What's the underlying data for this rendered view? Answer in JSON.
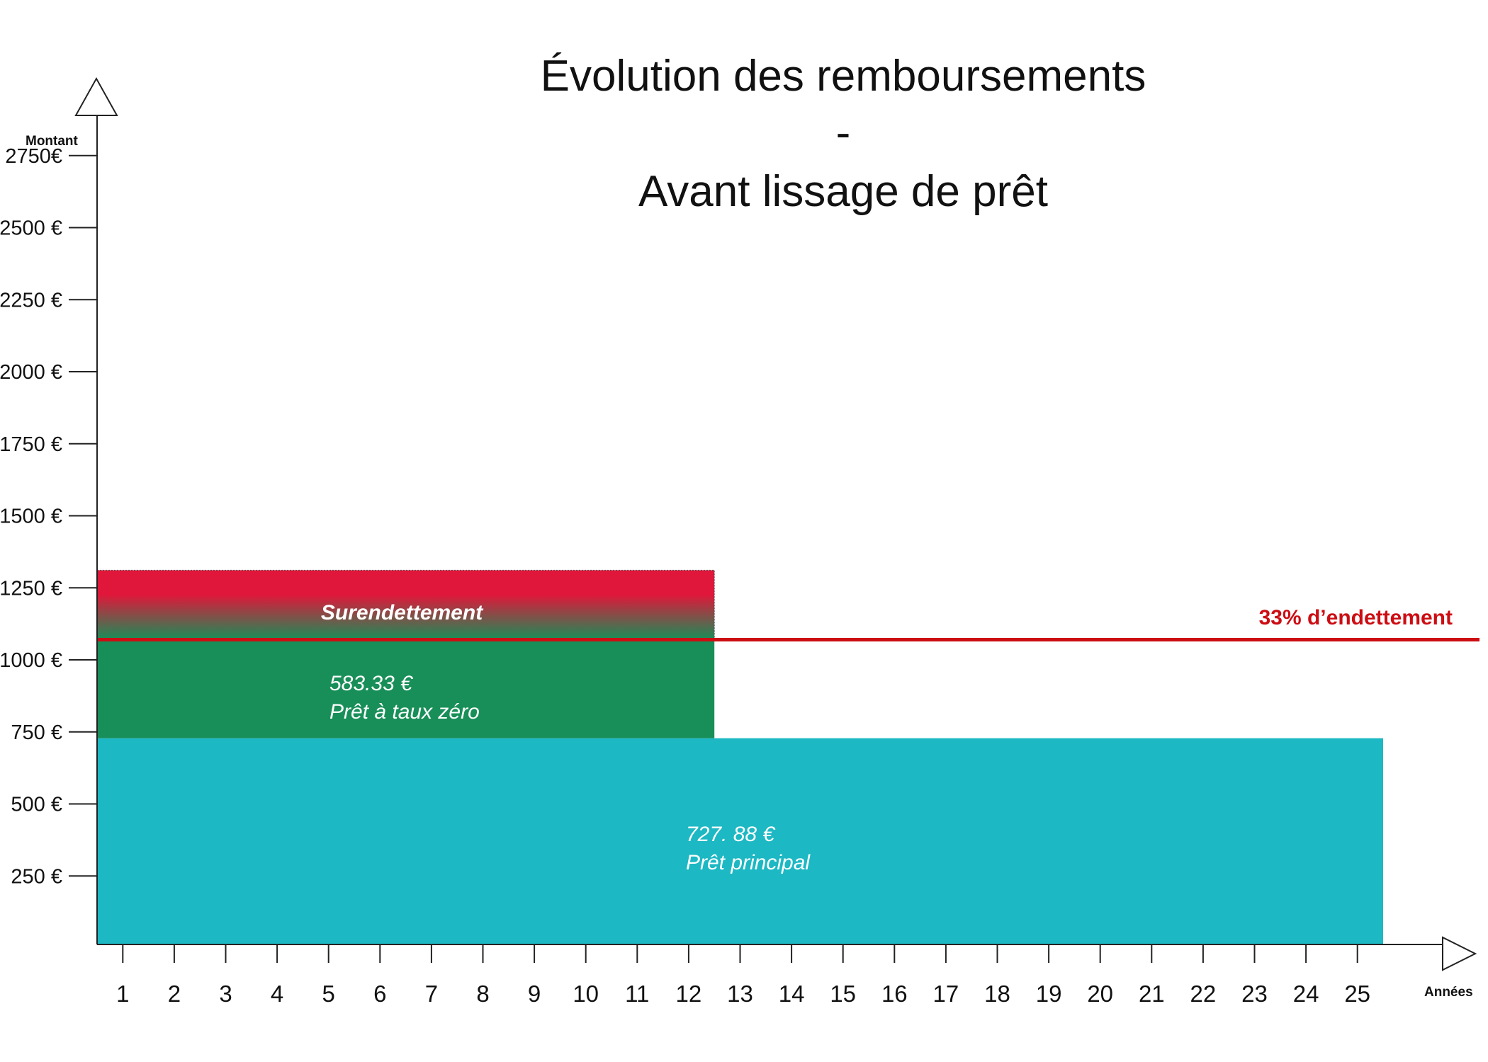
{
  "chart_data": {
    "type": "bar",
    "title": "Évolution des remboursements",
    "title_separator": "-",
    "subtitle": "Avant lissage de prêt",
    "xlabel": "Années",
    "ylabel": "Montant",
    "x_ticks": [
      "1",
      "2",
      "3",
      "4",
      "5",
      "6",
      "7",
      "8",
      "9",
      "10",
      "11",
      "12",
      "13",
      "14",
      "15",
      "16",
      "17",
      "18",
      "19",
      "20",
      "21",
      "22",
      "23",
      "24",
      "25"
    ],
    "y_ticks": [
      "2750€",
      "2500 €",
      "2250 €",
      "2000 €",
      "1750 €",
      "1500 €",
      "1250 €",
      "1000 €",
      "750 €",
      "500 €",
      "250 €"
    ],
    "y_tick_values": [
      2750,
      2500,
      2250,
      2000,
      1750,
      1500,
      1250,
      1000,
      750,
      500,
      250
    ],
    "ylim": [
      0,
      3000
    ],
    "grid": false,
    "bars": [
      {
        "name": "Prêt principal",
        "amount_label": "727. 88 €",
        "name_label": "Prêt principal",
        "from_year": 0,
        "to_year": 25,
        "bottom": 0,
        "top": 728,
        "color": "#1cb8c3"
      },
      {
        "name": "Prêt à taux zéro",
        "amount_label": "583.33 €",
        "name_label": "Prêt à taux zéro",
        "from_year": 0,
        "to_year": 12,
        "bottom": 728,
        "top": 1311,
        "color": "#188f58",
        "overflow_color": "#e0173a"
      }
    ],
    "overflow_label": "Surendettement",
    "threshold": {
      "label": "33% d’endettement",
      "value": 1070,
      "color": "#cc0d13"
    }
  }
}
